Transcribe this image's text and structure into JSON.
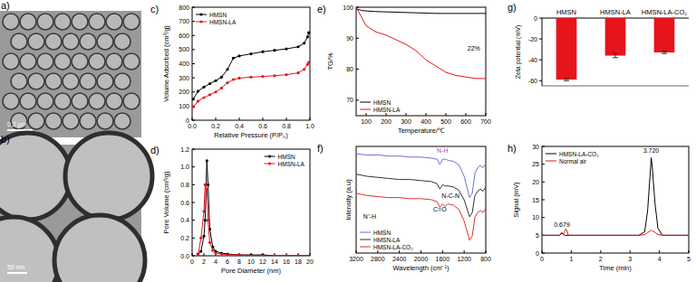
{
  "images": [
    {
      "label": "a)",
      "scale_bar": "0.2 μm"
    },
    {
      "label": "b)",
      "scale_bar": "50 nm"
    }
  ],
  "chart_data": [
    {
      "type": "line",
      "title": "c)",
      "x_label": "Relative Pressure (P/P₀)",
      "y_label": "Volume Adsorbed (cm³/g)",
      "x": [
        0.01,
        0.05,
        0.1,
        0.15,
        0.2,
        0.25,
        0.3,
        0.35,
        0.4,
        0.5,
        0.6,
        0.7,
        0.8,
        0.9,
        0.95,
        0.98,
        0.99
      ],
      "series": [
        {
          "name": "HMSN",
          "color": "#000000",
          "marker": "circle",
          "values": [
            150,
            205,
            235,
            258,
            280,
            305,
            360,
            440,
            455,
            470,
            485,
            495,
            505,
            520,
            545,
            590,
            620
          ]
        },
        {
          "name": "HMSN-LA",
          "color": "#e8141c",
          "marker": "circle",
          "values": [
            95,
            135,
            160,
            180,
            200,
            228,
            265,
            288,
            298,
            305,
            310,
            315,
            322,
            335,
            360,
            395,
            410
          ]
        }
      ],
      "xlim": [
        0,
        1
      ],
      "xticks": [
        {
          "value": 0,
          "label": "0.0"
        },
        {
          "value": 0.2,
          "label": "0.2"
        },
        {
          "value": 0.4,
          "label": "0.4"
        },
        {
          "value": 0.6,
          "label": "0.6"
        },
        {
          "value": 0.8,
          "label": "0.8"
        },
        {
          "value": 1,
          "label": "1.0"
        }
      ],
      "ylim": [
        0,
        800
      ],
      "yticks": [
        0,
        100,
        200,
        300,
        400,
        500,
        600,
        700,
        800
      ],
      "legend": "upper left"
    },
    {
      "type": "line",
      "title": "d)",
      "x_label": "Pore Diameter (nm)",
      "y_label": "Pore Volume (cm³/g)",
      "x": [
        1,
        1.5,
        2,
        2.2,
        2.5,
        2.7,
        3,
        3.5,
        4,
        5,
        6,
        8,
        10,
        12,
        14,
        16,
        18,
        20
      ],
      "series": [
        {
          "name": "HMSN",
          "color": "#000000",
          "marker": "circle",
          "values": [
            0.02,
            0.05,
            0.22,
            0.4,
            1.07,
            0.8,
            0.3,
            0.1,
            0.05,
            0.03,
            0.02,
            0.01,
            0.01,
            0.01,
            0.0,
            0.0,
            0.0,
            0.0
          ]
        },
        {
          "name": "HMSN-LA",
          "color": "#e8141c",
          "marker": "circle",
          "values": [
            0.01,
            0.2,
            0.5,
            0.8,
            0.75,
            0.4,
            0.15,
            0.06,
            0.03,
            0.02,
            0.01,
            0.01,
            0.0,
            0.0,
            0.0,
            0.0,
            0.0,
            0.0
          ]
        }
      ],
      "xlim": [
        0,
        20
      ],
      "xticks": [
        0,
        2,
        4,
        6,
        8,
        10,
        12,
        14,
        16,
        18,
        20
      ],
      "ylim": [
        0,
        1.2
      ],
      "yticks": [
        {
          "value": 0,
          "label": "0.0"
        },
        {
          "value": 0.2,
          "label": "0.2"
        },
        {
          "value": 0.4,
          "label": "0.4"
        },
        {
          "value": 0.6,
          "label": "0.6"
        },
        {
          "value": 0.8,
          "label": "0.8"
        },
        {
          "value": 1,
          "label": "1.0"
        },
        {
          "value": 1.2,
          "label": "1.2"
        }
      ],
      "legend": "upper right"
    },
    {
      "type": "line",
      "title": "e)",
      "x_label": "Temperature/℃",
      "y_label": "TG/%",
      "x": [
        50,
        75,
        100,
        150,
        200,
        250,
        300,
        350,
        400,
        450,
        500,
        550,
        600,
        650,
        700
      ],
      "series": [
        {
          "name": "HMSN",
          "color": "#000000",
          "values": [
            99.5,
            99,
            98.8,
            98.6,
            98.5,
            98.4,
            98.3,
            98.2,
            98.1,
            98,
            98,
            98,
            98,
            98,
            98
          ]
        },
        {
          "name": "HMSN-LA",
          "color": "#e8141c",
          "values": [
            100,
            97,
            94,
            92,
            91,
            89.5,
            88,
            86,
            83,
            81,
            79,
            78,
            77.5,
            77,
            77
          ]
        }
      ],
      "xlim": [
        50,
        700
      ],
      "xticks": [
        100,
        200,
        300,
        400,
        500,
        600,
        700
      ],
      "ylim": [
        65,
        100
      ],
      "yticks": [
        70,
        80,
        90,
        100
      ],
      "annotations": [
        {
          "text": "22%",
          "x": 640,
          "y": 86,
          "color": "#000000"
        }
      ],
      "legend": "lower left"
    },
    {
      "type": "line",
      "title": "f)",
      "x_label": "Wavelength (cm⁻¹)",
      "y_label": "Intensity (a.u)",
      "x": [
        3200,
        3000,
        2800,
        2600,
        2400,
        2200,
        2000,
        1800,
        1700,
        1650,
        1600,
        1550,
        1500,
        1400,
        1300,
        1200,
        1100,
        1050,
        1000,
        950,
        900,
        850,
        800
      ],
      "series": [
        {
          "name": "HMSN",
          "color": "#6f6fd8",
          "values": [
            9.3,
            9.2,
            9.2,
            9.1,
            9.1,
            9.0,
            9.0,
            8.9,
            8.8,
            8.3,
            8.8,
            8.8,
            8.7,
            8.6,
            8.3,
            7.2,
            5.2,
            5.6,
            7.5,
            8.0,
            8.2,
            8.0,
            8.4
          ]
        },
        {
          "name": "HMSN-LA",
          "color": "#333333",
          "values": [
            7.4,
            7.2,
            7.1,
            7.0,
            6.9,
            6.9,
            6.8,
            6.7,
            6.5,
            6.0,
            6.4,
            6.3,
            6.3,
            6.2,
            5.9,
            5.0,
            3.4,
            3.8,
            5.4,
            5.8,
            6.0,
            5.8,
            6.2
          ]
        },
        {
          "name": "HMSN-LA-CO₂",
          "color": "#e03030",
          "values": [
            5.6,
            5.4,
            5.3,
            5.2,
            5.2,
            5.1,
            5.1,
            5.0,
            4.8,
            4.3,
            4.6,
            4.4,
            4.6,
            4.5,
            4.1,
            3.0,
            1.2,
            1.6,
            3.4,
            3.8,
            4.0,
            3.8,
            4.2
          ]
        }
      ],
      "xlim": [
        3200,
        800
      ],
      "xticks": [
        3200,
        2800,
        2400,
        2000,
        1600,
        1200,
        800
      ],
      "ylim": [
        0,
        10
      ],
      "yticks": [],
      "tick_labels": "x",
      "annotations": [
        {
          "text": "N-H",
          "x": 1600,
          "y": 9.4,
          "color": "#b040b0"
        },
        {
          "text": "N⁺-H",
          "x": 2950,
          "y": 3.2,
          "color": "#000000"
        },
        {
          "text": "N-C-N",
          "x": 1450,
          "y": 5.2,
          "color": "#000000"
        },
        {
          "text": "C=O",
          "x": 1650,
          "y": 3.9,
          "color": "#000000"
        }
      ],
      "legend": "lower left"
    },
    {
      "type": "bar",
      "title": "g)",
      "y_label": "Zeta potential (mV)",
      "categories": [
        "HMSN",
        "HMSN-LA",
        "HMSN-LA-CO₂"
      ],
      "values": [
        -59,
        -36,
        -33
      ],
      "errors": [
        1,
        2,
        1
      ],
      "color": "#e8141c",
      "ylim": [
        -65,
        0
      ],
      "yticks": [
        -60,
        -40,
        -20,
        0
      ]
    },
    {
      "type": "line",
      "title": "h)",
      "x_label": "Time (min)",
      "y_label": "Signal (mV)",
      "x": [
        0,
        0.5,
        0.6,
        0.65,
        0.68,
        0.72,
        0.78,
        0.82,
        0.9,
        1.5,
        2.5,
        3.3,
        3.5,
        3.6,
        3.7,
        3.72,
        3.75,
        3.85,
        3.95,
        4.1,
        4.5,
        5
      ],
      "series": [
        {
          "name": "HMSN-LA-CO₂",
          "color": "#000000",
          "values": [
            5,
            5,
            5,
            5.4,
            5.6,
            5.3,
            5,
            5,
            5,
            5,
            5,
            5,
            6,
            12,
            24,
            26.8,
            25,
            14,
            7,
            5,
            5,
            5
          ]
        },
        {
          "name": "Normal air",
          "color": "#e8141c",
          "values": [
            5,
            5,
            5,
            5.6,
            5.8,
            5.3,
            6.2,
            6.8,
            5,
            5,
            5,
            5,
            5.2,
            5.8,
            6.3,
            6.4,
            6.3,
            5.8,
            5.2,
            5,
            5,
            5
          ]
        }
      ],
      "xlim": [
        0,
        5
      ],
      "xticks": [
        0,
        1,
        2,
        3,
        4,
        5
      ],
      "ylim": [
        0,
        30
      ],
      "yticks": [
        0,
        5,
        10,
        15,
        20,
        25,
        30
      ],
      "annotations": [
        {
          "text": "3.720",
          "x": 3.72,
          "y": 28.3,
          "color": "#000000"
        },
        {
          "text": "0.679",
          "x": 0.68,
          "y": 7.3,
          "color": "#000000"
        }
      ],
      "legend": "upper left"
    }
  ]
}
